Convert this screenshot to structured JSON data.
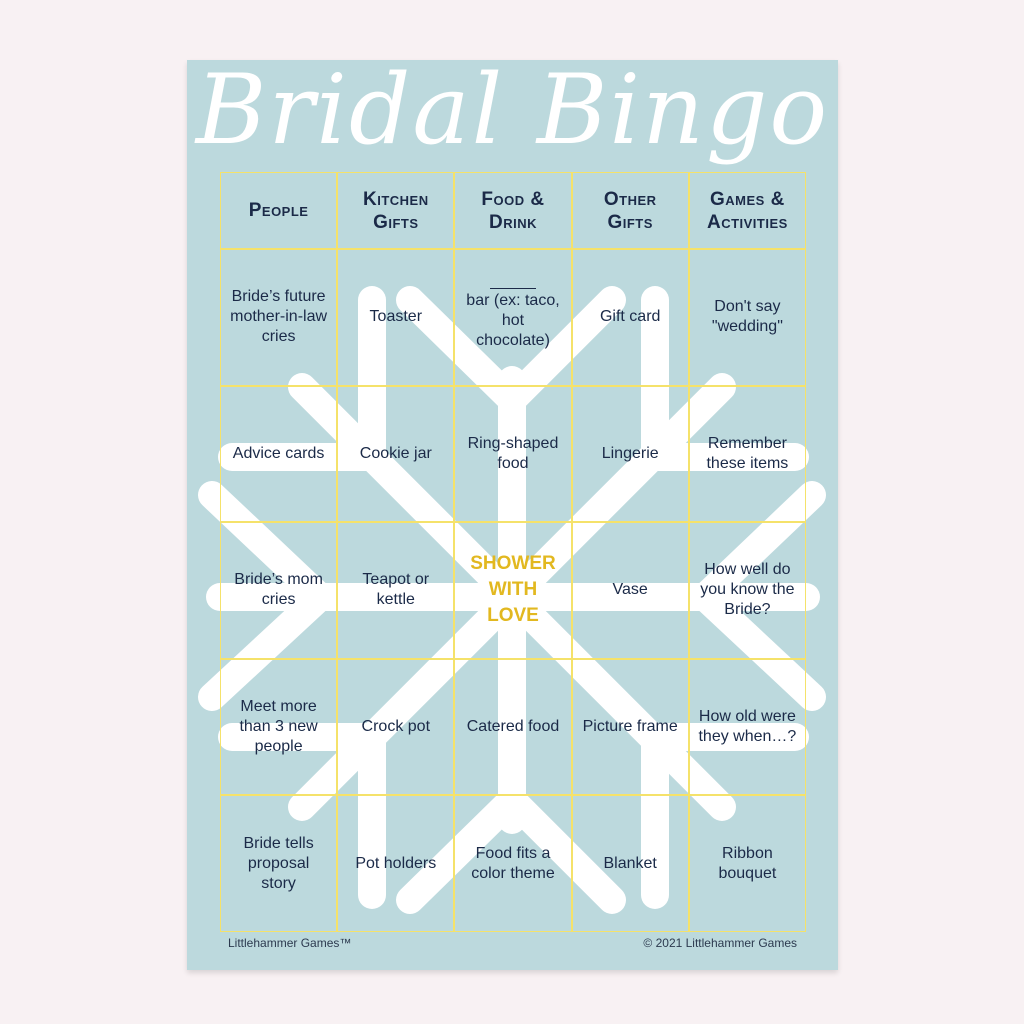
{
  "title": "Bridal Bingo",
  "headers": [
    "People",
    "Kitchen Gifts",
    "Food & Drink",
    "Other Gifts",
    "Games & Activities"
  ],
  "rows": [
    [
      "Bride’s future mother-in-law cries",
      "Toaster",
      "bar (ex: taco, hot chocolate)",
      "Gift card",
      "Don't say \"wedding\""
    ],
    [
      "Advice cards",
      "Cookie jar",
      "Ring-shaped food",
      "Lingerie",
      "Remember these items"
    ],
    [
      "Bride’s mom cries",
      "Teapot or kettle",
      "SHOWER WITH LOVE",
      "Vase",
      "How well do you know the Bride?"
    ],
    [
      "Meet more than 3 new people",
      "Crock pot",
      "Catered food",
      "Picture frame",
      "How old were they when…?"
    ],
    [
      "Bride tells proposal story",
      "Pot holders",
      "Food fits a color theme",
      "Blanket",
      "Ribbon bouquet"
    ]
  ],
  "footer": {
    "left": "Littlehammer Games™",
    "right": "© 2021 Littlehammer Games"
  },
  "colors": {
    "background": "#bcd9dd",
    "grid": "#f5e26a",
    "text": "#1b2a48",
    "free_space": "#e2b820"
  }
}
